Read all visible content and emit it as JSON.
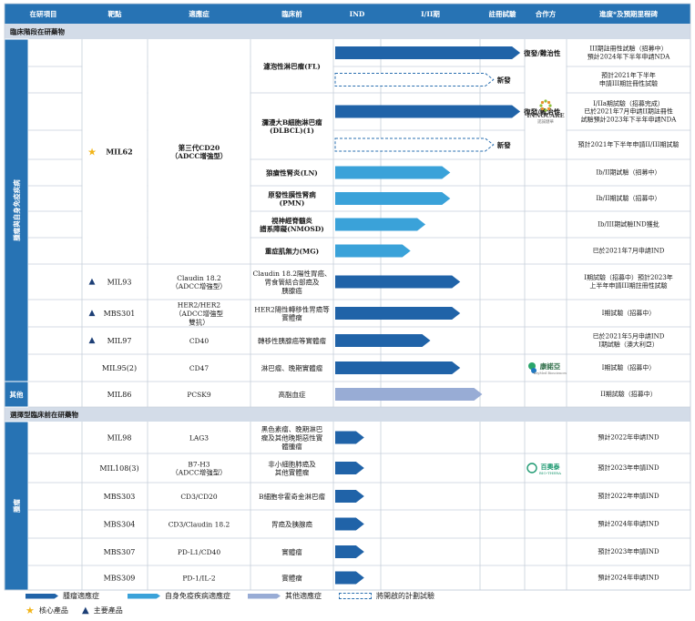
{
  "colors": {
    "header_bg": "#2773b4",
    "section_bg": "#d3dce8",
    "side_bg": "#2773b4",
    "grid": "#c7cfdb",
    "oncology": "#2063a8",
    "autoimmune": "#3aa2d9",
    "other": "#98acd5",
    "planned": "#2a6fb0",
    "star": "#f2b418",
    "triangle": "#1d3f76"
  },
  "header": [
    "在研項目",
    "靶點",
    "適應症",
    "臨床前",
    "IND",
    "I/II期",
    "註冊試驗",
    "合作方",
    "進度*及預期里程碑"
  ],
  "sections": [
    "臨床階段在研藥物",
    "選擇型臨床前在研藥物"
  ],
  "side_labels": [
    "腫瘤與自身免疫疾病",
    "其他",
    "腫瘤"
  ],
  "rows": [
    {
      "product": "",
      "target": "",
      "indication": "濾泡性淋巴瘤(FL)",
      "bar_type": "oncology",
      "stage_reached": 2.9,
      "bar_label": "復發/難治性",
      "milestone": "III期註冊性試驗（招募中）\n預計2024年下半年申請NDA"
    },
    {
      "product": "",
      "target": "",
      "indication": "",
      "bar_type": "planned",
      "stage_reached": 2.3,
      "bar_label": "新發",
      "milestone": "預計2021年下半年\n申請III期註冊性試驗"
    },
    {
      "product": "",
      "target": "",
      "indication": "瀰漫大B細胞淋巴瘤\n(DLBCL)(1)",
      "bar_type": "oncology",
      "stage_reached": 2.9,
      "bar_label": "復發/難治性",
      "milestone": "I/IIa期試驗（招募完成）\n已於2021年7月申請II期註冊性\n試驗預計2023年下半年申請NDA"
    },
    {
      "product": "MIL62",
      "target": "第三代CD20\n（ADCC增強型）",
      "indication": "",
      "bar_type": "planned",
      "stage_reached": 2.3,
      "bar_label": "新發",
      "milestone": "預計2021年下半年申請II/III期試驗"
    },
    {
      "product": "",
      "target": "",
      "indication": "狼瘡性腎炎(LN)",
      "bar_type": "autoimmune",
      "stage_reached": 1.7,
      "bar_label": "",
      "milestone": "Ib/II期試驗（招募中）"
    },
    {
      "product": "",
      "target": "",
      "indication": "原發性膜性腎病\n(PMN)",
      "bar_type": "autoimmune",
      "stage_reached": 1.7,
      "bar_label": "",
      "milestone": "Ib/II期試驗（招募中）"
    },
    {
      "product": "",
      "target": "",
      "indication": "視神經脊髓炎\n譜系障礙(NMOSD)",
      "bar_type": "autoimmune",
      "stage_reached": 1.45,
      "bar_label": "",
      "milestone": "Ib/III期試驗IND獲批"
    },
    {
      "product": "",
      "target": "",
      "indication": "重症肌無力(MG)",
      "bar_type": "autoimmune",
      "stage_reached": 1.3,
      "bar_label": "",
      "milestone": "已於2021年7月申請IND"
    },
    {
      "product": "MIL93",
      "target": "Claudin 18.2\n（ADCC增強型）",
      "indication": "Claudin 18.2陽性胃癌、\n胃食管結合部癌及\n胰腺癌",
      "bar_type": "oncology",
      "stage_reached": 1.8,
      "bar_label": "",
      "milestone": "I期試驗（招募中）預計2023年\n上半年申請III期註冊性試驗"
    },
    {
      "product": "MBS301",
      "target": "HER2/HER2\n（ADCC增強型\n雙抗）",
      "indication": "HER2陽性轉移性胃癌等\n實體瘤",
      "bar_type": "oncology",
      "stage_reached": 1.8,
      "bar_label": "",
      "milestone": "I期試驗（招募中）"
    },
    {
      "product": "MIL97",
      "target": "CD40",
      "indication": "轉移性胰腺癌等實體瘤",
      "bar_type": "oncology",
      "stage_reached": 1.5,
      "bar_label": "",
      "milestone": "已於2021年5月申請IND\nI期試驗（澳大利亞）"
    },
    {
      "product": "MIL95(2)",
      "target": "CD47",
      "indication": "淋巴瘤、晚期實體瘤",
      "bar_type": "oncology",
      "stage_reached": 1.8,
      "bar_label": "",
      "milestone": "I期試驗（招募中）"
    },
    {
      "product": "MIL86",
      "target": "PCSK9",
      "indication": "高脂血症",
      "bar_type": "other",
      "stage_reached": 2.05,
      "bar_label": "",
      "milestone": "II期試驗（招募中）"
    },
    {
      "product": "MIL98",
      "target": "LAG3",
      "indication": "黑色素瘤、晚期淋巴\n瘤及其他晚期惡性實\n體腫瘤",
      "bar_type": "oncology",
      "stage_reached": 0.65,
      "bar_label": "",
      "milestone": "預計2022年申請IND"
    },
    {
      "product": "MIL108(3)",
      "target": "B7-H3\n（ADCC增強型）",
      "indication": "非小細胞肺癌及\n其他實體瘤",
      "bar_type": "oncology",
      "stage_reached": 0.65,
      "bar_label": "",
      "milestone": "預計2023年申請IND"
    },
    {
      "product": "MBS303",
      "target": "CD3/CD20",
      "indication": "B細胞非霍奇金淋巴瘤",
      "bar_type": "oncology",
      "stage_reached": 0.65,
      "bar_label": "",
      "milestone": "預計2022年申請IND"
    },
    {
      "product": "MBS304",
      "target": "CD3/Claudin 18.2",
      "indication": "胃癌及胰腺癌",
      "bar_type": "oncology",
      "stage_reached": 0.65,
      "bar_label": "",
      "milestone": "預計2024年申請IND"
    },
    {
      "product": "MBS307",
      "target": "PD-L1/CD40",
      "indication": "實體瘤",
      "bar_type": "oncology",
      "stage_reached": 0.65,
      "bar_label": "",
      "milestone": "預計2023年申請IND"
    },
    {
      "product": "MBS309",
      "target": "PD-1/IL-2",
      "indication": "實體瘤",
      "bar_type": "oncology",
      "stage_reached": 0.65,
      "bar_label": "",
      "milestone": "預計2024年申請IND"
    }
  ],
  "partners": [
    {
      "name": "INNOCARE",
      "sub": "諾誠健華",
      "icon": "innocare-logo-icon"
    },
    {
      "name": "康諾亞",
      "sub": "KeyMed Biosciences",
      "icon": "keymed-logo-icon"
    },
    {
      "name": "百奧泰",
      "sub": "BIO-THERA",
      "icon": "biothera-logo-icon"
    }
  ],
  "legend": {
    "items": [
      "腫瘤適應症",
      "自身免疫疾病適應症",
      "其他適應症",
      "將開啟的計劃試驗"
    ],
    "core": "核心產品",
    "key": "主要產品"
  }
}
